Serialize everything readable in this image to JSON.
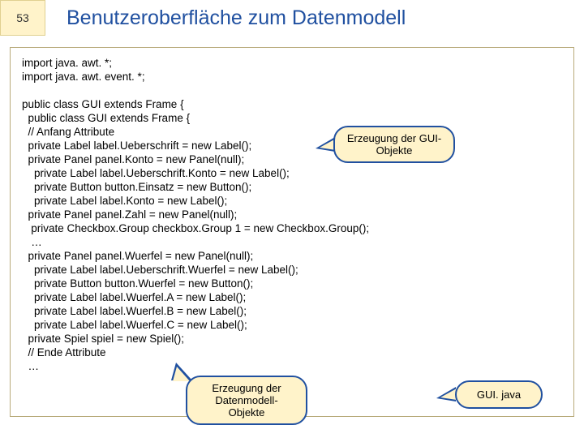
{
  "header": {
    "slide_number": "53",
    "title": "Benutzeroberfläche zum Datenmodell"
  },
  "code": {
    "lines": [
      "import java. awt. *;",
      "import java. awt. event. *;",
      "",
      "public class GUI extends Frame {",
      "  public class GUI extends Frame {",
      "  // Anfang Attribute",
      "  private Label label.Ueberschrift = new Label();",
      "  private Panel panel.Konto = new Panel(null);",
      "    private Label label.Ueberschrift.Konto = new Label();",
      "    private Button button.Einsatz = new Button();",
      "    private Label label.Konto = new Label();",
      "  private Panel panel.Zahl = new Panel(null);",
      "   private Checkbox.Group checkbox.Group 1 = new Checkbox.Group();",
      "   …",
      "  private Panel panel.Wuerfel = new Panel(null);",
      "    private Label label.Ueberschrift.Wuerfel = new Label();",
      "    private Button button.Wuerfel = new Button();",
      "    private Label label.Wuerfel.A = new Label();",
      "    private Label label.Wuerfel.B = new Label();",
      "    private Label label.Wuerfel.C = new Label();",
      "  private Spiel spiel = new Spiel();",
      "  // Ende Attribute",
      "  …"
    ]
  },
  "callouts": {
    "c1": {
      "line1": "Erzeugung der GUI-",
      "line2": "Objekte"
    },
    "c2": {
      "line1": "Erzeugung der",
      "line2": "Datenmodell-Objekte"
    },
    "c3": {
      "text": "GUI. java"
    }
  },
  "style": {
    "slide_bg": "#fff3ca",
    "callout_bg": "#fff3ca",
    "callout_border": "#2050a0",
    "title_color": "#2050a0",
    "codebox_border": "#b8aa7a"
  }
}
